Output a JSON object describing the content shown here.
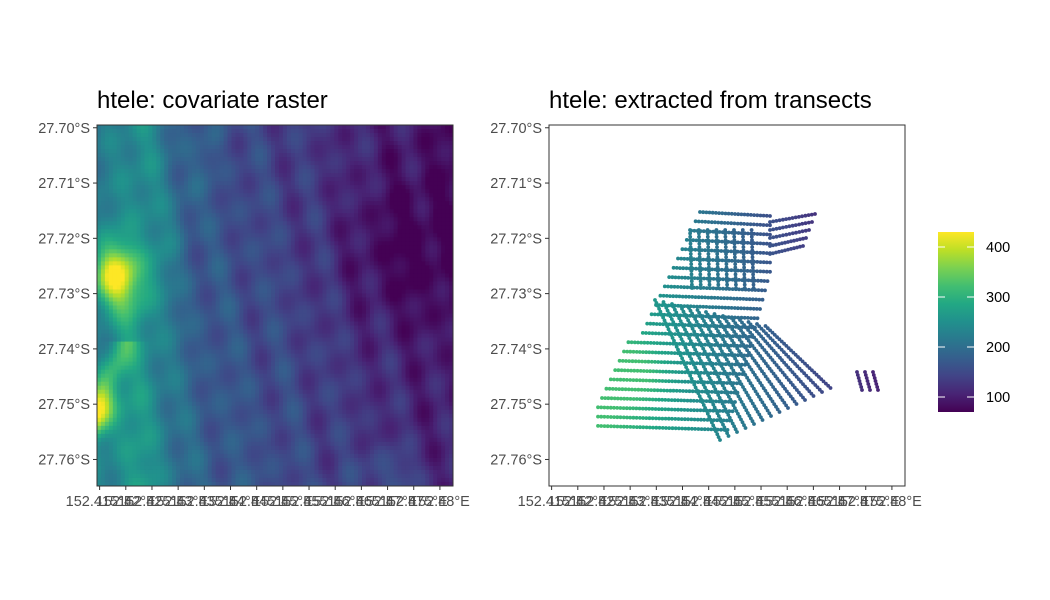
{
  "colors": {
    "viridis": [
      "#440154",
      "#482475",
      "#414487",
      "#355f8d",
      "#2a788e",
      "#21908d",
      "#22a884",
      "#42be71",
      "#7ad151",
      "#bddf26",
      "#fde725"
    ],
    "tick": "#333333",
    "tick_label": "#4d4d4d",
    "panel_border": "#333333"
  },
  "chart_data": [
    {
      "type": "heatmap",
      "title": "htele: covariate raster",
      "x_ticks": {
        "values": [
          152.415,
          152.42,
          152.425,
          152.43,
          152.435,
          152.44,
          152.445,
          152.45,
          152.455,
          152.46,
          152.465,
          152.47,
          152.475,
          152.48
        ],
        "labels": [
          "152.415°E",
          "152.42°E",
          "152.425°E",
          "152.43°E",
          "152.435°E",
          "152.44°E",
          "152.445°E",
          "152.45°E",
          "152.455°E",
          "152.46°E",
          "152.465°E",
          "152.47°E",
          "152.475°E",
          "152.48°E"
        ]
      },
      "y_ticks": {
        "values": [
          -27.7,
          -27.71,
          -27.72,
          -27.73,
          -27.74,
          -27.75,
          -27.76
        ],
        "labels": [
          "27.70°S",
          "27.71°S",
          "27.72°S",
          "27.73°S",
          "27.74°S",
          "27.75°S",
          "27.76°S"
        ]
      },
      "xlim": [
        152.4145,
        152.4825
      ],
      "ylim": [
        -27.7648,
        -27.6995
      ],
      "fill_range": [
        70,
        430
      ],
      "hotspots": [
        {
          "lon": 152.4175,
          "lat": -27.721,
          "value": 410
        },
        {
          "lon": 152.415,
          "lat": -27.726,
          "value": 420
        },
        {
          "lon": 152.4148,
          "lat": -27.745,
          "value": 430
        }
      ]
    },
    {
      "type": "scatter",
      "title": "htele: extracted from transects",
      "x_ticks": {
        "values": [
          152.415,
          152.42,
          152.425,
          152.43,
          152.435,
          152.44,
          152.445,
          152.45,
          152.455,
          152.46,
          152.465,
          152.47,
          152.475,
          152.48
        ],
        "labels": [
          "152.415°E",
          "152.42°E",
          "152.425°E",
          "152.43°E",
          "152.435°E",
          "152.44°E",
          "152.445°E",
          "152.45°E",
          "152.455°E",
          "152.46°E",
          "152.465°E",
          "152.47°E",
          "152.475°E",
          "152.48°E"
        ]
      },
      "y_ticks": {
        "values": [
          -27.7,
          -27.71,
          -27.72,
          -27.73,
          -27.74,
          -27.75,
          -27.76
        ],
        "labels": [
          "27.70°S",
          "27.71°S",
          "27.72°S",
          "27.73°S",
          "27.74°S",
          "27.75°S",
          "27.76°S"
        ]
      },
      "xlim": [
        152.4145,
        152.4825
      ],
      "ylim": [
        -27.7648,
        -27.6995
      ],
      "legend": {
        "position": "right",
        "range": [
          70,
          430
        ],
        "breaks": [
          100,
          200,
          300,
          400
        ],
        "labels": [
          "100",
          "200",
          "300",
          "400"
        ]
      }
    }
  ]
}
